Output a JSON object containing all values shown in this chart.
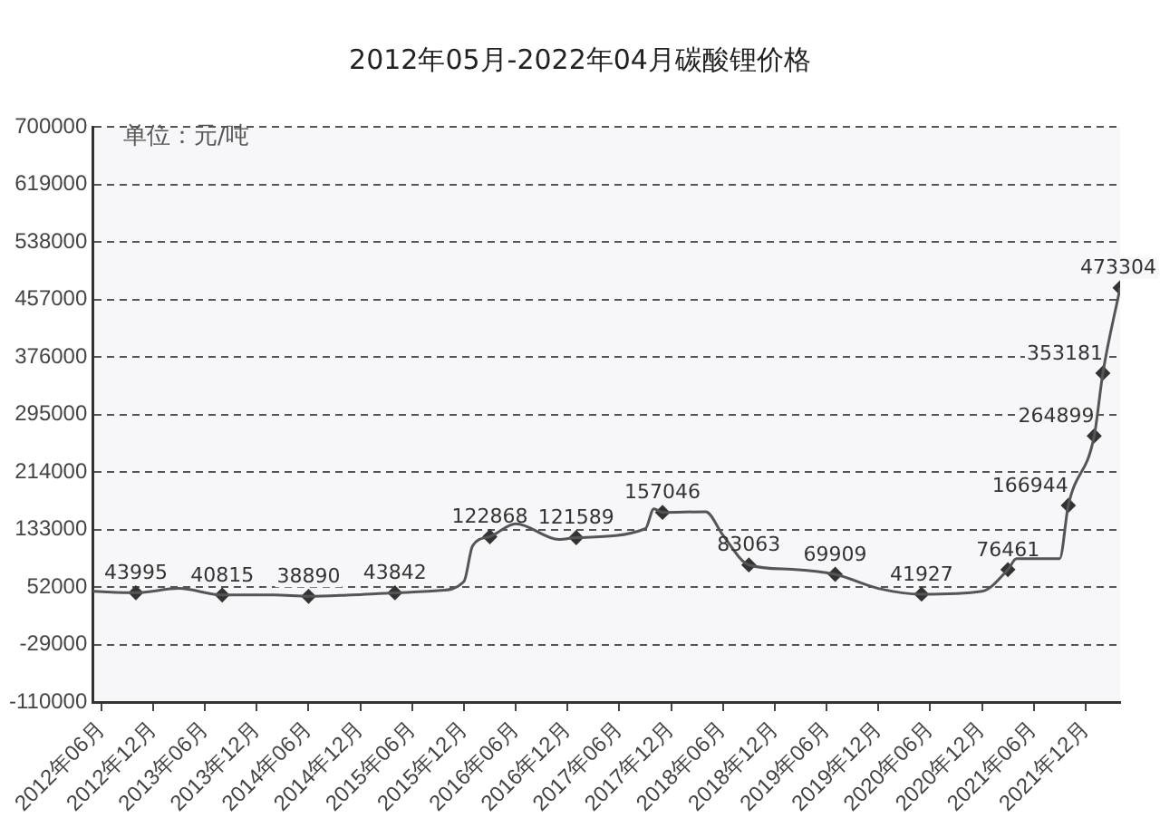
{
  "chart_data": {
    "type": "line",
    "title": "2012年05月-2022年04月碳酸锂价格",
    "ylabel": "单位：元/吨",
    "xlim": [
      "2012-05",
      "2022-04"
    ],
    "xticks": [
      {
        "value": "2012-06",
        "label": "2012年06月"
      },
      {
        "value": "2012-12",
        "label": "2012年12月"
      },
      {
        "value": "2013-06",
        "label": "2013年06月"
      },
      {
        "value": "2013-12",
        "label": "2013年12月"
      },
      {
        "value": "2014-06",
        "label": "2014年06月"
      },
      {
        "value": "2014-12",
        "label": "2014年12月"
      },
      {
        "value": "2015-06",
        "label": "2015年06月"
      },
      {
        "value": "2015-12",
        "label": "2015年12月"
      },
      {
        "value": "2016-06",
        "label": "2016年06月"
      },
      {
        "value": "2016-12",
        "label": "2016年12月"
      },
      {
        "value": "2017-06",
        "label": "2017年06月"
      },
      {
        "value": "2017-12",
        "label": "2017年12月"
      },
      {
        "value": "2018-06",
        "label": "2018年06月"
      },
      {
        "value": "2018-12",
        "label": "2018年12月"
      },
      {
        "value": "2019-06",
        "label": "2019年06月"
      },
      {
        "value": "2019-12",
        "label": "2019年12月"
      },
      {
        "value": "2020-06",
        "label": "2020年06月"
      },
      {
        "value": "2020-12",
        "label": "2020年12月"
      },
      {
        "value": "2021-06",
        "label": "2021年06月"
      },
      {
        "value": "2021-12",
        "label": "2021年12月"
      }
    ],
    "ylim": [
      -110000,
      700000
    ],
    "yticks": [
      -110000,
      -29000,
      52000,
      133000,
      214000,
      295000,
      376000,
      457000,
      538000,
      619000,
      700000
    ],
    "grid": "y",
    "legend": false,
    "series": [
      {
        "color": "#555555",
        "marker": "none",
        "x": [
          "2012-05",
          "2012-10",
          "2013-03",
          "2013-08",
          "2014-02",
          "2014-06",
          "2014-11",
          "2015-04",
          "2015-09",
          "2015-12",
          "2016-01",
          "2016-03",
          "2016-06",
          "2016-11",
          "2017-01",
          "2017-09",
          "2017-10",
          "2017-11",
          "2018-04",
          "2018-06",
          "2018-09",
          "2019-02",
          "2019-07",
          "2019-12",
          "2020-05",
          "2020-12",
          "2021-03",
          "2021-04",
          "2021-09",
          "2021-10",
          "2022-01",
          "2022-02",
          "2022-04"
        ],
        "values": [
          46000,
          43995,
          50000,
          40815,
          41000,
          38890,
          41000,
          43842,
          47000,
          60000,
          110000,
          122868,
          141000,
          119000,
          121589,
          134000,
          162000,
          157046,
          158000,
          125000,
          83063,
          77000,
          69909,
          50000,
          41927,
          46000,
          76461,
          92000,
          92000,
          166944,
          264899,
          353181,
          473304
        ]
      },
      {
        "type": "scatter",
        "color": "#333333",
        "marker": "diamond",
        "x": [
          "2012-10",
          "2013-08",
          "2014-06",
          "2015-04",
          "2016-03",
          "2017-01",
          "2017-11",
          "2018-09",
          "2019-07",
          "2020-05",
          "2021-03",
          "2021-10",
          "2022-01",
          "2022-02",
          "2022-04"
        ],
        "values": [
          43995,
          40815,
          38890,
          43842,
          122868,
          121589,
          157046,
          83063,
          69909,
          41927,
          76461,
          166944,
          264899,
          353181,
          473304
        ],
        "value_labels": [
          "43995",
          "40815",
          "38890",
          "43842",
          "122868",
          "121589",
          "157046",
          "83063",
          "69909",
          "41927",
          "76461",
          "166944",
          "264899",
          "353181",
          "473304"
        ]
      }
    ]
  }
}
